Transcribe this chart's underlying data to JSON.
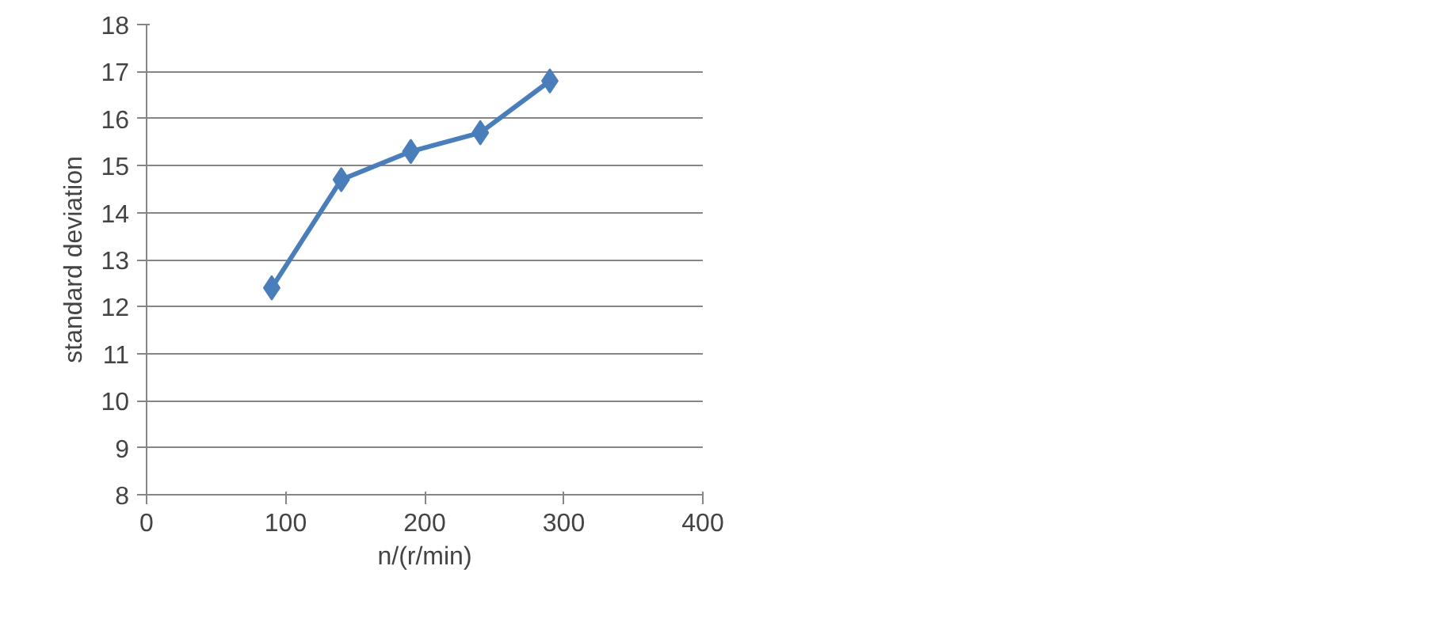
{
  "chart_data": {
    "type": "line",
    "xlabel": "n/(r/min)",
    "ylabel": "standard deviation",
    "x": [
      90,
      140,
      190,
      240,
      290
    ],
    "series": [
      {
        "color": "#4a7ebb",
        "values": [
          12.4,
          14.7,
          15.3,
          15.7,
          16.8
        ]
      }
    ],
    "xlim": [
      0,
      400
    ],
    "xticks": [
      0,
      100,
      200,
      300,
      400
    ],
    "ylim": [
      8,
      18
    ],
    "yticks": [
      8,
      9,
      10,
      11,
      12,
      13,
      14,
      15,
      16,
      17,
      18
    ],
    "grid": "y",
    "marker": "diamond",
    "line_style": "solid"
  }
}
